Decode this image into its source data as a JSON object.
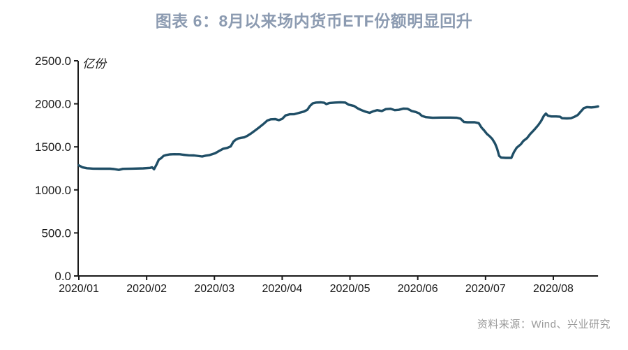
{
  "page": {
    "title": "图表 6：8月以来场内货币ETF份额明显回升",
    "source": "资料来源：Wind、兴业研究"
  },
  "colors": {
    "title": "#8c9bb1",
    "line": "#1f4e66",
    "axis": "#1a1a1a",
    "tick_label": "#1a1a1a",
    "unit_label": "#1a1a1a",
    "source_text": "#9a9a9a",
    "background": "#ffffff"
  },
  "chart_data": {
    "type": "line",
    "title": "图表 6：8月以来场内货币ETF份额明显回升",
    "unit_label": "亿份",
    "xlabel": "",
    "ylabel": "亿份",
    "ylim": [
      0,
      2500
    ],
    "y_tick_values": [
      0,
      500,
      1000,
      1500,
      2000,
      2500
    ],
    "y_tick_labels": [
      "0.0",
      "500.0",
      "1000.0",
      "1500.0",
      "2000.0",
      "2500.0"
    ],
    "x_tick_labels": [
      "2020/01",
      "2020/02",
      "2020/03",
      "2020/04",
      "2020/05",
      "2020/06",
      "2020/07",
      "2020/08"
    ],
    "x_tick_month_index": [
      0,
      1,
      2,
      3,
      4,
      5,
      6,
      7
    ],
    "x_axis_end_month_index": 7.66,
    "grid": false,
    "legend": "none",
    "series": [
      {
        "name": "场内货币ETF份额",
        "x_unit": "months since 2020/01 (daily data)",
        "y_unit": "亿份",
        "points": [
          [
            0.0,
            1285
          ],
          [
            0.05,
            1263
          ],
          [
            0.12,
            1252
          ],
          [
            0.21,
            1247
          ],
          [
            0.33,
            1246
          ],
          [
            0.46,
            1246
          ],
          [
            0.52,
            1242
          ],
          [
            0.59,
            1232
          ],
          [
            0.65,
            1244
          ],
          [
            0.79,
            1247
          ],
          [
            0.95,
            1250
          ],
          [
            1.05,
            1256
          ],
          [
            1.08,
            1262
          ],
          [
            1.11,
            1240
          ],
          [
            1.15,
            1300
          ],
          [
            1.18,
            1352
          ],
          [
            1.21,
            1365
          ],
          [
            1.25,
            1395
          ],
          [
            1.29,
            1405
          ],
          [
            1.34,
            1412
          ],
          [
            1.41,
            1415
          ],
          [
            1.49,
            1414
          ],
          [
            1.54,
            1408
          ],
          [
            1.62,
            1402
          ],
          [
            1.7,
            1400
          ],
          [
            1.82,
            1388
          ],
          [
            1.87,
            1398
          ],
          [
            1.93,
            1405
          ],
          [
            2.01,
            1425
          ],
          [
            2.06,
            1448
          ],
          [
            2.13,
            1478
          ],
          [
            2.19,
            1488
          ],
          [
            2.24,
            1505
          ],
          [
            2.28,
            1560
          ],
          [
            2.31,
            1580
          ],
          [
            2.35,
            1597
          ],
          [
            2.39,
            1605
          ],
          [
            2.44,
            1610
          ],
          [
            2.49,
            1630
          ],
          [
            2.54,
            1655
          ],
          [
            2.6,
            1690
          ],
          [
            2.67,
            1732
          ],
          [
            2.73,
            1770
          ],
          [
            2.78,
            1805
          ],
          [
            2.83,
            1820
          ],
          [
            2.9,
            1822
          ],
          [
            2.95,
            1810
          ],
          [
            3.0,
            1825
          ],
          [
            3.05,
            1865
          ],
          [
            3.11,
            1878
          ],
          [
            3.18,
            1880
          ],
          [
            3.26,
            1898
          ],
          [
            3.32,
            1910
          ],
          [
            3.37,
            1930
          ],
          [
            3.41,
            1975
          ],
          [
            3.45,
            2005
          ],
          [
            3.5,
            2015
          ],
          [
            3.57,
            2017
          ],
          [
            3.62,
            2012
          ],
          [
            3.65,
            1997
          ],
          [
            3.7,
            2010
          ],
          [
            3.78,
            2015
          ],
          [
            3.86,
            2018
          ],
          [
            3.93,
            2015
          ],
          [
            3.98,
            1990
          ],
          [
            4.06,
            1975
          ],
          [
            4.12,
            1945
          ],
          [
            4.17,
            1926
          ],
          [
            4.23,
            1908
          ],
          [
            4.29,
            1895
          ],
          [
            4.34,
            1912
          ],
          [
            4.4,
            1926
          ],
          [
            4.47,
            1916
          ],
          [
            4.53,
            1938
          ],
          [
            4.6,
            1942
          ],
          [
            4.66,
            1926
          ],
          [
            4.72,
            1930
          ],
          [
            4.79,
            1945
          ],
          [
            4.85,
            1942
          ],
          [
            4.91,
            1916
          ],
          [
            4.97,
            1905
          ],
          [
            5.02,
            1890
          ],
          [
            5.06,
            1860
          ],
          [
            5.12,
            1845
          ],
          [
            5.22,
            1838
          ],
          [
            5.34,
            1840
          ],
          [
            5.48,
            1840
          ],
          [
            5.58,
            1838
          ],
          [
            5.63,
            1828
          ],
          [
            5.68,
            1790
          ],
          [
            5.73,
            1786
          ],
          [
            5.84,
            1786
          ],
          [
            5.9,
            1775
          ],
          [
            5.94,
            1725
          ],
          [
            5.98,
            1690
          ],
          [
            6.02,
            1650
          ],
          [
            6.06,
            1623
          ],
          [
            6.1,
            1590
          ],
          [
            6.14,
            1540
          ],
          [
            6.17,
            1480
          ],
          [
            6.2,
            1395
          ],
          [
            6.23,
            1375
          ],
          [
            6.3,
            1372
          ],
          [
            6.38,
            1372
          ],
          [
            6.42,
            1440
          ],
          [
            6.46,
            1490
          ],
          [
            6.52,
            1530
          ],
          [
            6.56,
            1570
          ],
          [
            6.61,
            1600
          ],
          [
            6.66,
            1650
          ],
          [
            6.72,
            1700
          ],
          [
            6.78,
            1755
          ],
          [
            6.82,
            1800
          ],
          [
            6.86,
            1860
          ],
          [
            6.89,
            1886
          ],
          [
            6.92,
            1862
          ],
          [
            6.97,
            1853
          ],
          [
            7.04,
            1853
          ],
          [
            7.1,
            1850
          ],
          [
            7.13,
            1833
          ],
          [
            7.2,
            1830
          ],
          [
            7.26,
            1833
          ],
          [
            7.31,
            1848
          ],
          [
            7.36,
            1870
          ],
          [
            7.41,
            1915
          ],
          [
            7.45,
            1950
          ],
          [
            7.5,
            1962
          ],
          [
            7.56,
            1958
          ],
          [
            7.61,
            1962
          ],
          [
            7.66,
            1970
          ]
        ]
      }
    ]
  }
}
